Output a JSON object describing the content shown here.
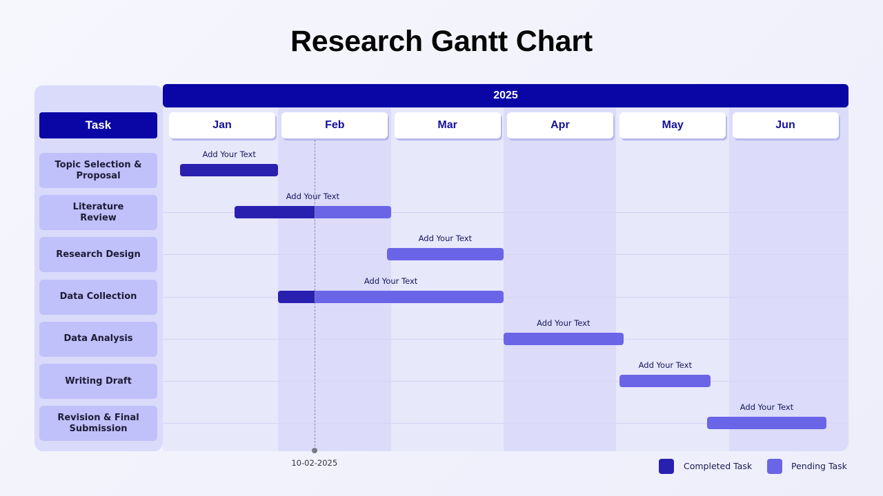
{
  "title": "Research Gantt Chart",
  "task_header": "Task",
  "year": "2025",
  "today_label": "10-02-2025",
  "colors": {
    "completed": "#2a20b0",
    "pending": "#6a65e6",
    "header": "#0a06a6"
  },
  "legend": {
    "completed": "Completed Task",
    "pending": "Pending Task"
  },
  "chart_data": {
    "type": "gantt",
    "months": [
      "Jan",
      "Feb",
      "Mar",
      "Apr",
      "May",
      "Jun"
    ],
    "today": "2025-02-10",
    "tasks": [
      {
        "name": "Topic Selection & Proposal",
        "label": "Add Your Text",
        "start": "2025-01-05",
        "end": "2025-01-31",
        "completed_until": "2025-01-31"
      },
      {
        "name": "Literature Review",
        "label": "Add Your Text",
        "start": "2025-01-20",
        "end": "2025-02-28",
        "completed_until": "2025-02-10"
      },
      {
        "name": "Research Design",
        "label": "Add Your Text",
        "start": "2025-02-28",
        "end": "2025-03-31",
        "completed_until": null
      },
      {
        "name": "Data Collection",
        "label": "Add Your Text",
        "start": "2025-02-01",
        "end": "2025-03-31",
        "completed_until": "2025-02-10"
      },
      {
        "name": "Data Analysis",
        "label": "Add Your Text",
        "start": "2025-04-01",
        "end": "2025-05-02",
        "completed_until": null
      },
      {
        "name": "Writing Draft",
        "label": "Add Your Text",
        "start": "2025-05-02",
        "end": "2025-05-26",
        "completed_until": null
      },
      {
        "name": "Revision & Final Submission",
        "label": "Add Your Text",
        "start": "2025-05-26",
        "end": "2025-06-26",
        "completed_until": null
      }
    ]
  }
}
